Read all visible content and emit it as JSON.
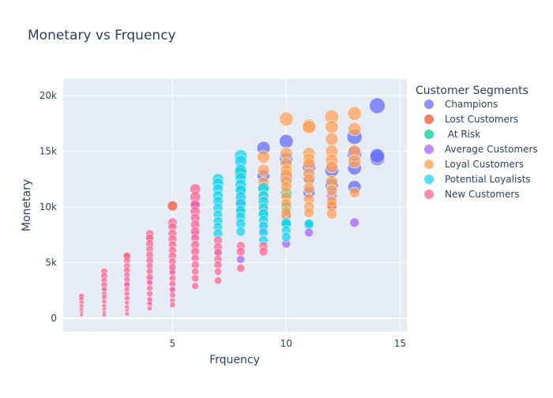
{
  "chart_data": {
    "type": "scatter",
    "title": "Monetary vs Frquency",
    "xlabel": "Frquency",
    "ylabel": "Monetary",
    "xlim": [
      0.2,
      15.3
    ],
    "ylim": [
      -1200,
      21500
    ],
    "xticks": [
      5,
      10,
      15
    ],
    "yticks": [
      0,
      5000,
      10000,
      15000,
      20000
    ],
    "ytick_labels": [
      "0",
      "5k",
      "10k",
      "15k",
      "20k"
    ],
    "xtick_labels": [
      "5",
      "10",
      "15"
    ],
    "grid": true,
    "legend_title": "Customer Segments",
    "legend_position": "right",
    "series": [
      {
        "name": "Champions",
        "color": "#636efa",
        "points": [
          [
            14,
            19100,
            1
          ],
          [
            13,
            16300,
            0.95
          ],
          [
            13,
            14800,
            0.9
          ],
          [
            14,
            14400,
            0.95
          ],
          [
            14,
            14600,
            0.9
          ],
          [
            13,
            13500,
            0.85
          ],
          [
            12,
            13300,
            0.85
          ],
          [
            13,
            11800,
            0.8
          ],
          [
            12,
            12000,
            0.8
          ],
          [
            10,
            15900,
            0.85
          ],
          [
            9,
            15300,
            0.8
          ],
          [
            10,
            14300,
            0.8
          ],
          [
            11,
            13600,
            0.8
          ],
          [
            11,
            12600,
            0.75
          ],
          [
            10,
            12600,
            0.75
          ],
          [
            11,
            11300,
            0.7
          ],
          [
            9,
            12800,
            0.75
          ],
          [
            6,
            10100,
            0.5
          ],
          [
            8,
            10500,
            0.6
          ]
        ]
      },
      {
        "name": "Lost Customers",
        "color": "#ef553b",
        "points": [
          [
            5,
            10100,
            0.55
          ],
          [
            12,
            10100,
            0.55
          ],
          [
            10,
            9300,
            0.55
          ],
          [
            1,
            1900,
            0.2
          ],
          [
            3,
            5600,
            0.3
          ],
          [
            4,
            7300,
            0.35
          ]
        ]
      },
      {
        "name": " At Risk",
        "color": "#00cc96",
        "points": [
          [
            8,
            13000,
            0.7
          ],
          [
            9,
            11500,
            0.65
          ],
          [
            10,
            11200,
            0.65
          ],
          [
            8,
            11600,
            0.6
          ],
          [
            10,
            8600,
            0.6
          ],
          [
            11,
            8400,
            0.55
          ],
          [
            9,
            9300,
            0.6
          ],
          [
            10,
            10000,
            0.6
          ],
          [
            8,
            9500,
            0.55
          ]
        ]
      },
      {
        "name": "Average Customers",
        "color": "#ab63fa",
        "points": [
          [
            13,
            8600,
            0.5
          ],
          [
            10,
            6700,
            0.45
          ],
          [
            11,
            7700,
            0.45
          ],
          [
            8,
            5300,
            0.4
          ],
          [
            6,
            10200,
            0.45
          ],
          [
            5,
            4300,
            0.3
          ],
          [
            4,
            3400,
            0.3
          ],
          [
            3,
            3100,
            0.25
          ],
          [
            2,
            2600,
            0.2
          ],
          [
            1,
            1900,
            0.15
          ],
          [
            9,
            8000,
            0.45
          ],
          [
            12,
            11000,
            0.6
          ],
          [
            6,
            7500,
            0.4
          ],
          [
            7,
            6000,
            0.4
          ],
          [
            5,
            2500,
            0.25
          ],
          [
            4,
            1500,
            0.2
          ]
        ]
      },
      {
        "name": "Loyal Customers",
        "color": "#fea15a",
        "points": [
          [
            10,
            17900,
            0.85
          ],
          [
            11,
            17300,
            0.85
          ],
          [
            12,
            18100,
            0.85
          ],
          [
            13,
            18400,
            0.85
          ],
          [
            13,
            17000,
            0.8
          ],
          [
            12,
            17200,
            0.8
          ],
          [
            11,
            17200,
            0.8
          ],
          [
            12,
            16100,
            0.75
          ],
          [
            13,
            15000,
            0.75
          ],
          [
            12,
            15000,
            0.75
          ],
          [
            11,
            14800,
            0.75
          ],
          [
            10,
            14800,
            0.75
          ],
          [
            9,
            14500,
            0.75
          ],
          [
            11,
            14300,
            0.7
          ],
          [
            13,
            14100,
            0.8
          ],
          [
            12,
            14200,
            0.75
          ],
          [
            10,
            13900,
            0.7
          ],
          [
            11,
            13900,
            0.7
          ],
          [
            12,
            13600,
            0.7
          ],
          [
            10,
            13300,
            0.7
          ],
          [
            9,
            13300,
            0.7
          ],
          [
            11,
            13000,
            0.7
          ],
          [
            10,
            12900,
            0.7
          ],
          [
            12,
            12300,
            0.7
          ],
          [
            9,
            12200,
            0.65
          ],
          [
            10,
            12300,
            0.65
          ],
          [
            11,
            12500,
            0.65
          ],
          [
            10,
            11800,
            0.65
          ],
          [
            11,
            11700,
            0.65
          ],
          [
            12,
            11500,
            0.65
          ],
          [
            13,
            11300,
            0.6
          ],
          [
            9,
            11100,
            0.6
          ],
          [
            10,
            10900,
            0.6
          ],
          [
            11,
            10700,
            0.6
          ],
          [
            12,
            10500,
            0.6
          ],
          [
            10,
            10300,
            0.6
          ],
          [
            9,
            10000,
            0.6
          ],
          [
            11,
            10000,
            0.6
          ],
          [
            12,
            9400,
            0.6
          ],
          [
            10,
            9600,
            0.55
          ],
          [
            11,
            9500,
            0.55
          ]
        ]
      },
      {
        "name": "Potential Loyalists",
        "color": "#19d3f3",
        "points": [
          [
            8,
            14600,
            0.75
          ],
          [
            8,
            14100,
            0.7
          ],
          [
            8,
            13300,
            0.7
          ],
          [
            8,
            12600,
            0.65
          ],
          [
            8,
            12000,
            0.65
          ],
          [
            8,
            11500,
            0.6
          ],
          [
            8,
            10900,
            0.6
          ],
          [
            8,
            10300,
            0.6
          ],
          [
            8,
            9700,
            0.55
          ],
          [
            8,
            9100,
            0.55
          ],
          [
            8,
            8500,
            0.55
          ],
          [
            8,
            7800,
            0.5
          ],
          [
            7,
            12500,
            0.65
          ],
          [
            7,
            12100,
            0.65
          ],
          [
            7,
            11600,
            0.6
          ],
          [
            7,
            11000,
            0.6
          ],
          [
            7,
            10500,
            0.55
          ],
          [
            7,
            9900,
            0.55
          ],
          [
            7,
            9300,
            0.5
          ],
          [
            7,
            8700,
            0.5
          ],
          [
            7,
            8200,
            0.5
          ],
          [
            7,
            7600,
            0.5
          ],
          [
            9,
            11700,
            0.65
          ],
          [
            9,
            11000,
            0.6
          ],
          [
            9,
            10500,
            0.6
          ],
          [
            9,
            9900,
            0.55
          ],
          [
            9,
            9400,
            0.55
          ],
          [
            9,
            8800,
            0.55
          ],
          [
            9,
            8300,
            0.5
          ],
          [
            9,
            7700,
            0.5
          ],
          [
            9,
            7000,
            0.5
          ],
          [
            10,
            8500,
            0.55
          ],
          [
            10,
            7900,
            0.5
          ],
          [
            10,
            7300,
            0.5
          ],
          [
            11,
            8500,
            0.5
          ]
        ]
      },
      {
        "name": "New Customers",
        "color": "#ff6692",
        "points": [
          [
            6,
            11600,
            0.6
          ],
          [
            6,
            10900,
            0.6
          ],
          [
            6,
            10200,
            0.55
          ],
          [
            6,
            9600,
            0.55
          ],
          [
            6,
            9000,
            0.5
          ],
          [
            6,
            8400,
            0.5
          ],
          [
            6,
            7800,
            0.5
          ],
          [
            6,
            7200,
            0.45
          ],
          [
            6,
            6600,
            0.45
          ],
          [
            6,
            6000,
            0.45
          ],
          [
            6,
            5400,
            0.4
          ],
          [
            6,
            4800,
            0.4
          ],
          [
            6,
            4200,
            0.35
          ],
          [
            6,
            3600,
            0.35
          ],
          [
            6,
            2900,
            0.3
          ],
          [
            5,
            8600,
            0.5
          ],
          [
            5,
            8200,
            0.45
          ],
          [
            5,
            7600,
            0.45
          ],
          [
            5,
            7100,
            0.45
          ],
          [
            5,
            6600,
            0.4
          ],
          [
            5,
            6100,
            0.4
          ],
          [
            5,
            5600,
            0.4
          ],
          [
            5,
            5100,
            0.35
          ],
          [
            5,
            4600,
            0.35
          ],
          [
            5,
            4100,
            0.3
          ],
          [
            5,
            3600,
            0.3
          ],
          [
            5,
            3100,
            0.3
          ],
          [
            5,
            2600,
            0.25
          ],
          [
            5,
            2100,
            0.25
          ],
          [
            5,
            1600,
            0.2
          ],
          [
            5,
            1200,
            0.2
          ],
          [
            4,
            7600,
            0.4
          ],
          [
            4,
            7200,
            0.4
          ],
          [
            4,
            6700,
            0.4
          ],
          [
            4,
            6200,
            0.35
          ],
          [
            4,
            5700,
            0.35
          ],
          [
            4,
            5200,
            0.35
          ],
          [
            4,
            4700,
            0.3
          ],
          [
            4,
            4200,
            0.3
          ],
          [
            4,
            3700,
            0.3
          ],
          [
            4,
            3200,
            0.25
          ],
          [
            4,
            2700,
            0.25
          ],
          [
            4,
            2200,
            0.25
          ],
          [
            4,
            1700,
            0.2
          ],
          [
            4,
            1300,
            0.2
          ],
          [
            4,
            900,
            0.15
          ],
          [
            3,
            5600,
            0.35
          ],
          [
            3,
            5200,
            0.3
          ],
          [
            3,
            4700,
            0.3
          ],
          [
            3,
            4300,
            0.3
          ],
          [
            3,
            3900,
            0.25
          ],
          [
            3,
            3500,
            0.25
          ],
          [
            3,
            3000,
            0.25
          ],
          [
            3,
            2600,
            0.2
          ],
          [
            3,
            2200,
            0.2
          ],
          [
            3,
            1800,
            0.2
          ],
          [
            3,
            1400,
            0.15
          ],
          [
            3,
            1000,
            0.15
          ],
          [
            3,
            700,
            0.1
          ],
          [
            3,
            400,
            0.1
          ],
          [
            2,
            4200,
            0.3
          ],
          [
            2,
            3800,
            0.3
          ],
          [
            2,
            3400,
            0.25
          ],
          [
            2,
            3000,
            0.25
          ],
          [
            2,
            2600,
            0.2
          ],
          [
            2,
            2200,
            0.2
          ],
          [
            2,
            1900,
            0.2
          ],
          [
            2,
            1500,
            0.15
          ],
          [
            2,
            1100,
            0.15
          ],
          [
            2,
            800,
            0.1
          ],
          [
            2,
            500,
            0.1
          ],
          [
            2,
            300,
            0.08
          ],
          [
            1,
            2000,
            0.2
          ],
          [
            1,
            1700,
            0.18
          ],
          [
            1,
            1400,
            0.15
          ],
          [
            1,
            1100,
            0.13
          ],
          [
            1,
            800,
            0.1
          ],
          [
            1,
            500,
            0.08
          ],
          [
            1,
            300,
            0.06
          ],
          [
            7,
            7000,
            0.45
          ],
          [
            7,
            6400,
            0.45
          ],
          [
            7,
            5900,
            0.4
          ],
          [
            7,
            5300,
            0.4
          ],
          [
            7,
            4800,
            0.4
          ],
          [
            7,
            4200,
            0.35
          ],
          [
            7,
            3400,
            0.35
          ],
          [
            8,
            6500,
            0.45
          ],
          [
            8,
            6000,
            0.45
          ],
          [
            8,
            4500,
            0.4
          ],
          [
            9,
            6500,
            0.45
          ],
          [
            9,
            6000,
            0.45
          ]
        ]
      }
    ]
  }
}
